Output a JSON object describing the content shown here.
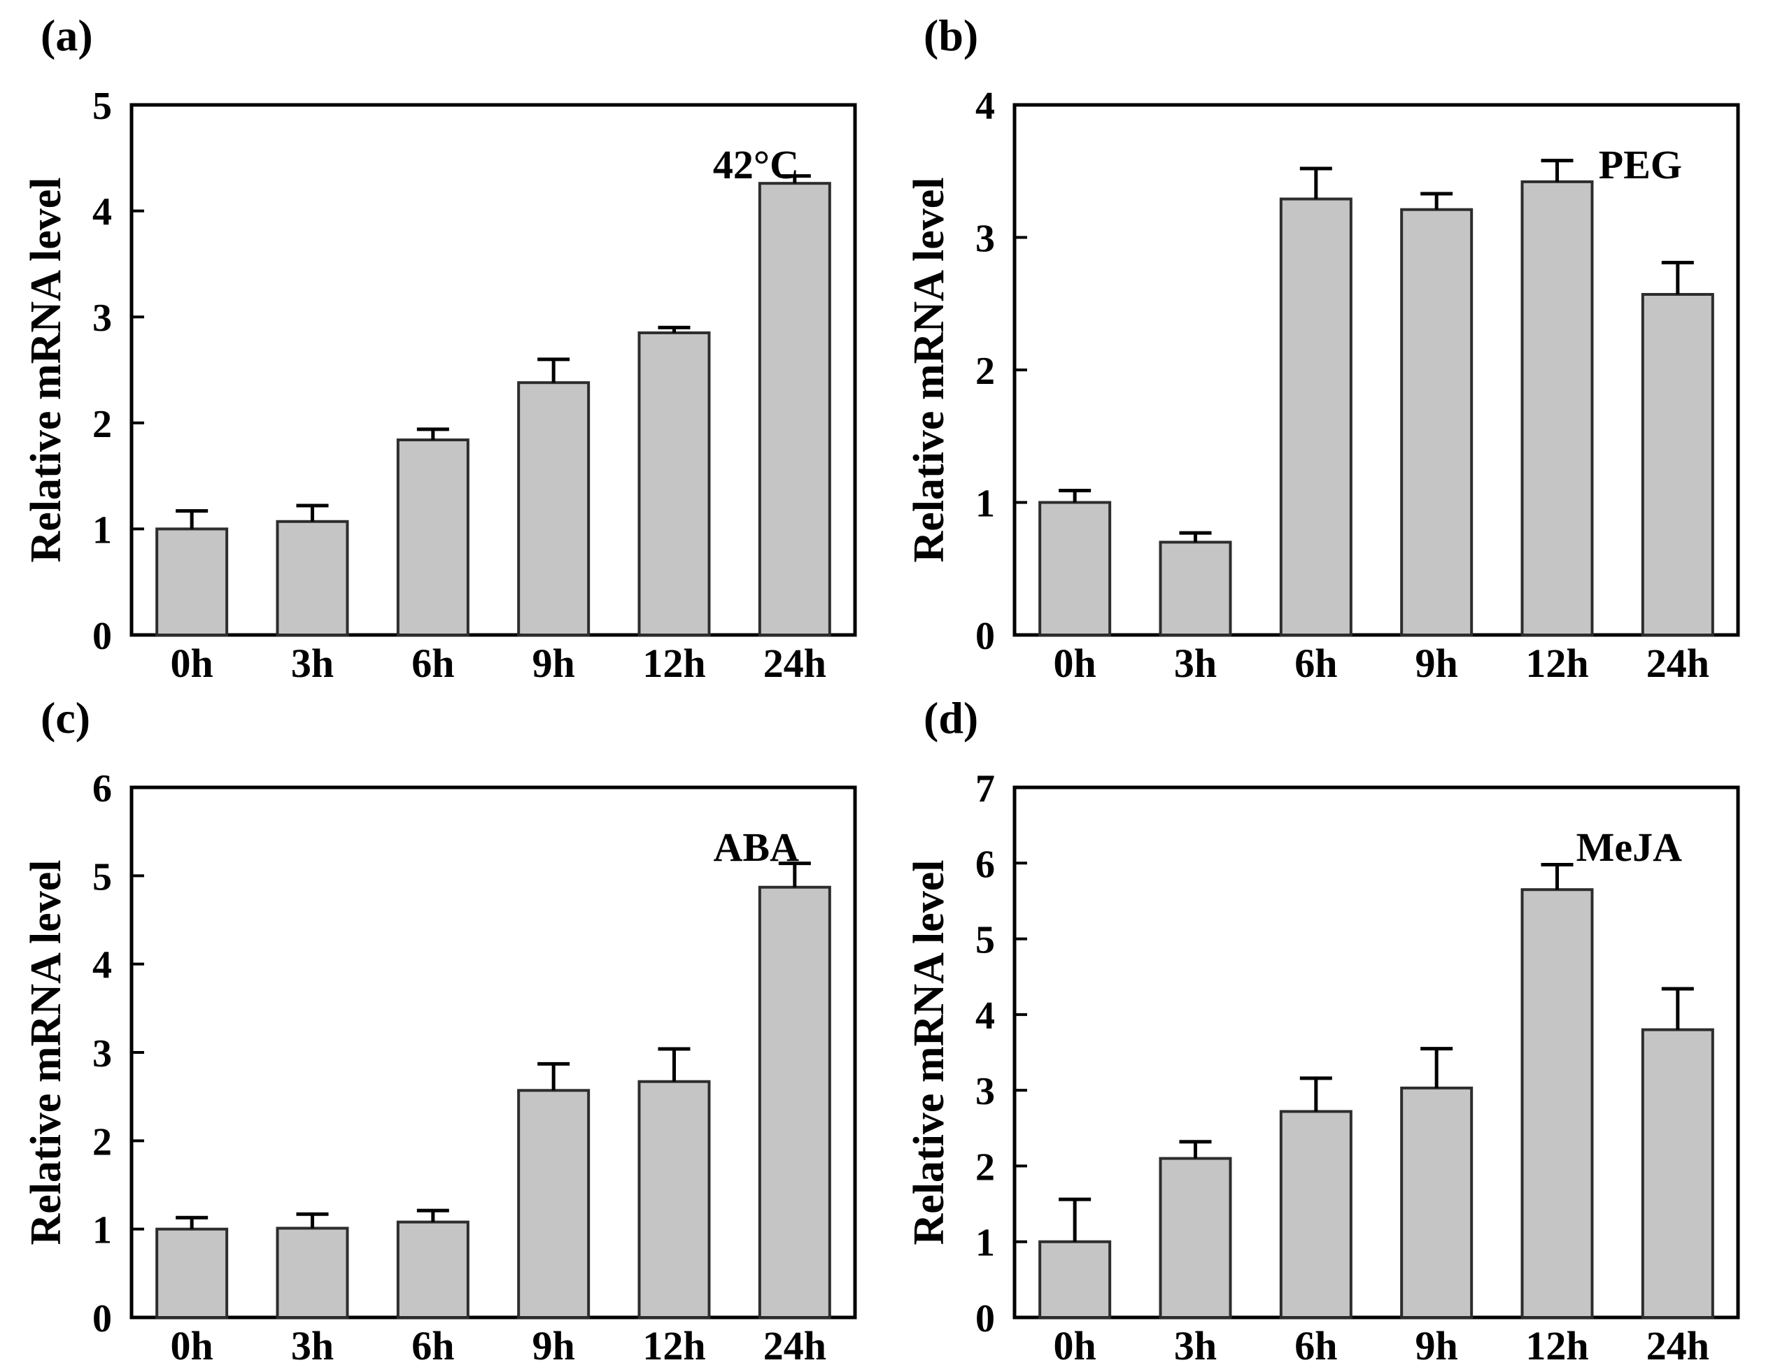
{
  "figure": {
    "title": "",
    "ylabel": "Relative mRNA level",
    "categories": [
      "0h",
      "3h",
      "6h",
      "9h",
      "12h",
      "24h"
    ]
  },
  "colors": {
    "background": "#ffffff",
    "bar_fill": "#c5c5c5",
    "bar_stroke": "#2d2d2d",
    "axis": "#000000",
    "text": "#000000"
  },
  "chart_data": [
    {
      "type": "bar",
      "panel_label": "(a)",
      "title": "42°C",
      "ylabel": "Relative mRNA level",
      "xlabel": "",
      "categories": [
        "0h",
        "3h",
        "6h",
        "9h",
        "12h",
        "24h"
      ],
      "values": [
        1.0,
        1.07,
        1.84,
        2.38,
        2.85,
        4.26
      ],
      "errors": [
        0.17,
        0.15,
        0.1,
        0.22,
        0.05,
        0.07
      ],
      "ylim": [
        0,
        5
      ],
      "ytick_step": 1,
      "grid": false,
      "legend": null
    },
    {
      "type": "bar",
      "panel_label": "(b)",
      "title": "PEG",
      "ylabel": "Relative mRNA level",
      "xlabel": "",
      "categories": [
        "0h",
        "3h",
        "6h",
        "9h",
        "12h",
        "24h"
      ],
      "values": [
        1.0,
        0.7,
        3.29,
        3.21,
        3.42,
        2.57
      ],
      "errors": [
        0.09,
        0.07,
        0.23,
        0.12,
        0.16,
        0.24
      ],
      "ylim": [
        0,
        4
      ],
      "ytick_step": 1,
      "grid": false,
      "legend": null
    },
    {
      "type": "bar",
      "panel_label": "(c)",
      "title": "ABA",
      "ylabel": "Relative mRNA level",
      "xlabel": "",
      "categories": [
        "0h",
        "3h",
        "6h",
        "9h",
        "12h",
        "24h"
      ],
      "values": [
        1.0,
        1.01,
        1.08,
        2.57,
        2.67,
        4.87
      ],
      "errors": [
        0.13,
        0.16,
        0.13,
        0.3,
        0.37,
        0.27
      ],
      "ylim": [
        0,
        6
      ],
      "ytick_step": 1,
      "grid": false,
      "legend": null
    },
    {
      "type": "bar",
      "panel_label": "(d)",
      "title": "MeJA",
      "ylabel": "Relative mRNA level",
      "xlabel": "",
      "categories": [
        "0h",
        "3h",
        "6h",
        "9h",
        "12h",
        "24h"
      ],
      "values": [
        1.0,
        2.1,
        2.72,
        3.03,
        5.65,
        3.8
      ],
      "errors": [
        0.56,
        0.22,
        0.44,
        0.52,
        0.33,
        0.54
      ],
      "ylim": [
        0,
        7
      ],
      "ytick_step": 1,
      "grid": false,
      "legend": null
    }
  ]
}
